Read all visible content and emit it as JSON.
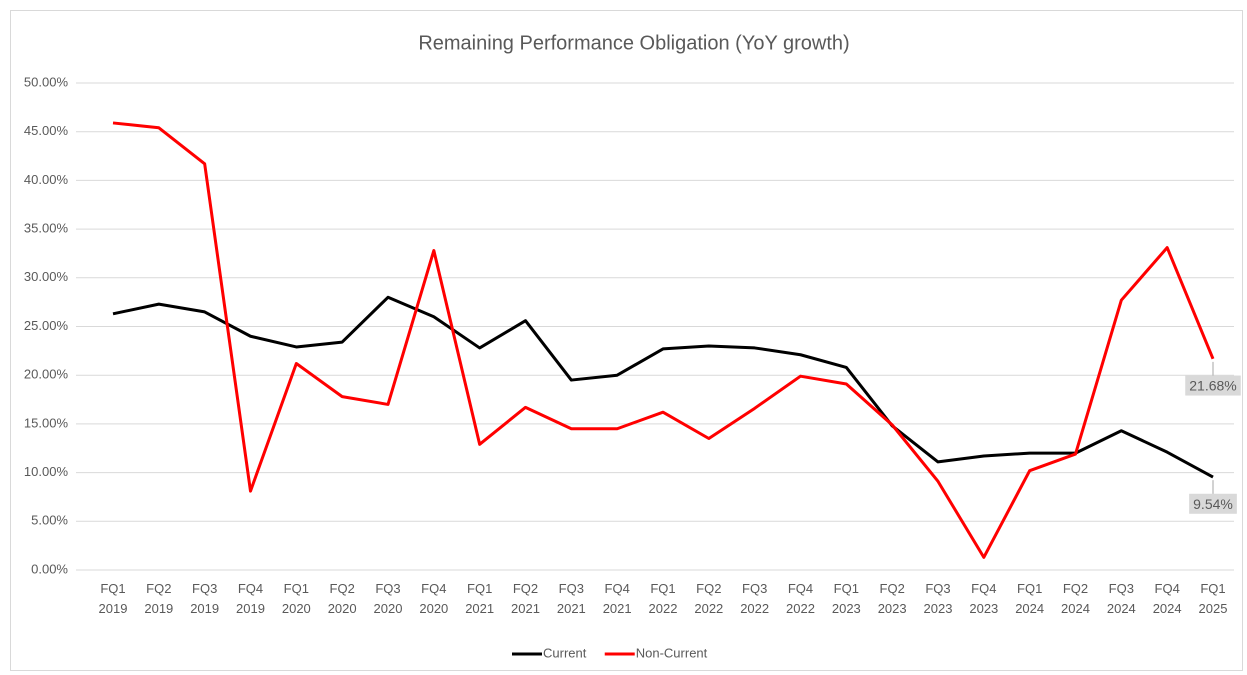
{
  "chart_data": {
    "type": "line",
    "title": "Remaining Performance Obligation (YoY growth)",
    "categories": [
      "FQ1 2019",
      "FQ2 2019",
      "FQ3 2019",
      "FQ4 2019",
      "FQ1 2020",
      "FQ2 2020",
      "FQ3 2020",
      "FQ4 2020",
      "FQ1 2021",
      "FQ2 2021",
      "FQ3 2021",
      "FQ4 2021",
      "FQ1 2022",
      "FQ2 2022",
      "FQ3 2022",
      "FQ4 2022",
      "FQ1 2023",
      "FQ2 2023",
      "FQ3 2023",
      "FQ4 2023",
      "FQ1 2024",
      "FQ2 2024",
      "FQ3 2024",
      "FQ4 2024",
      "FQ1 2025"
    ],
    "series": [
      {
        "name": "Current",
        "color": "#000000",
        "values": [
          26.3,
          27.3,
          26.5,
          24.0,
          22.9,
          23.4,
          28.0,
          26.0,
          22.8,
          25.6,
          19.5,
          20.0,
          22.7,
          23.0,
          22.8,
          22.1,
          20.8,
          14.8,
          11.1,
          11.7,
          12.0,
          12.0,
          14.3,
          12.1,
          9.54
        ],
        "value_labels": [
          null,
          null,
          null,
          null,
          null,
          null,
          null,
          null,
          null,
          null,
          null,
          null,
          null,
          null,
          null,
          null,
          null,
          null,
          null,
          null,
          null,
          null,
          null,
          null,
          "9.54%"
        ]
      },
      {
        "name": "Non-Current",
        "color": "#ff0000",
        "values": [
          45.9,
          45.4,
          41.7,
          8.1,
          21.2,
          17.8,
          17.0,
          32.8,
          12.9,
          16.7,
          14.5,
          14.5,
          16.2,
          13.5,
          16.6,
          19.9,
          19.1,
          14.9,
          9.1,
          1.3,
          10.2,
          11.9,
          27.7,
          33.1,
          21.68
        ],
        "value_labels": [
          null,
          null,
          null,
          null,
          null,
          null,
          null,
          null,
          null,
          null,
          null,
          null,
          null,
          null,
          null,
          null,
          null,
          null,
          null,
          null,
          null,
          null,
          null,
          null,
          "21.68%"
        ]
      }
    ],
    "ylim": [
      0,
      50
    ],
    "yticks": [
      {
        "value": 0,
        "label": "0.00%"
      },
      {
        "value": 5,
        "label": "5.00%"
      },
      {
        "value": 10,
        "label": "10.00%"
      },
      {
        "value": 15,
        "label": "15.00%"
      },
      {
        "value": 20,
        "label": "20.00%"
      },
      {
        "value": 25,
        "label": "25.00%"
      },
      {
        "value": 30,
        "label": "30.00%"
      },
      {
        "value": 35,
        "label": "35.00%"
      },
      {
        "value": 40,
        "label": "40.00%"
      },
      {
        "value": 45,
        "label": "45.00%"
      },
      {
        "value": 50,
        "label": "50.00%"
      }
    ],
    "grid": true,
    "legend": "bottom"
  }
}
